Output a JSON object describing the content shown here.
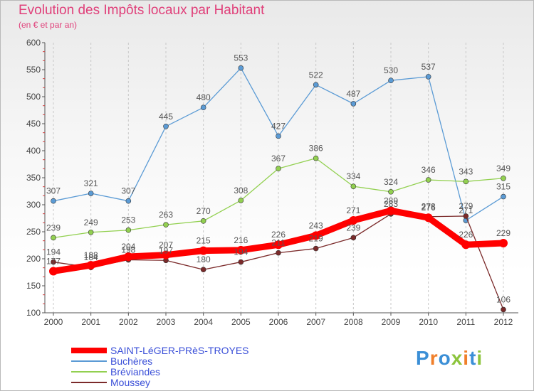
{
  "header": {
    "title": "Evolution des Impôts locaux par Habitant",
    "subtitle": "(en € et par an)"
  },
  "logo": {
    "text": "Proxiti",
    "colors": [
      "#3b8fd6",
      "#f07f2a",
      "#3b8fd6",
      "#8cc43c",
      "#f07f2a",
      "#3b8fd6",
      "#8cc43c"
    ]
  },
  "chart_data": {
    "type": "line",
    "title": "Evolution des Impôts locaux par Habitant",
    "subtitle": "(en € et par an)",
    "xlabel": "",
    "ylabel": "",
    "categories": [
      "2000",
      "2001",
      "2002",
      "2003",
      "2004",
      "2005",
      "2006",
      "2007",
      "2008",
      "2009",
      "2010",
      "2011",
      "2012"
    ],
    "ylim": [
      100,
      600
    ],
    "yticks": [
      100,
      150,
      200,
      250,
      300,
      350,
      400,
      450,
      500,
      550,
      600
    ],
    "grid": "dashed-vertical",
    "legend_position": "bottom-left",
    "series": [
      {
        "name": "SAINT-LéGER-PRèS-TROYES",
        "color": "#ff0000",
        "emphasis": true,
        "values": [
          177,
          188,
          204,
          207,
          215,
          216,
          226,
          243,
          271,
          289,
          276,
          226,
          229
        ],
        "labels": [
          "177",
          "188",
          "204",
          "207",
          "215",
          "216",
          "226",
          "243",
          "271",
          "289",
          "276",
          "226",
          "229"
        ]
      },
      {
        "name": "Buchères",
        "color": "#5b9bd5",
        "values": [
          307,
          321,
          307,
          445,
          480,
          553,
          427,
          522,
          487,
          530,
          537,
          271,
          315
        ],
        "labels": [
          "307",
          "321",
          "307",
          "445",
          "480",
          "553",
          "427",
          "522",
          "487",
          "530",
          "537",
          "271",
          "315"
        ]
      },
      {
        "name": "Bréviandes",
        "color": "#92d050",
        "values": [
          239,
          249,
          253,
          263,
          270,
          308,
          367,
          386,
          334,
          324,
          346,
          343,
          349
        ],
        "labels": [
          "239",
          "249",
          "253",
          "263",
          "270",
          "308",
          "367",
          "386",
          "334",
          "324",
          "346",
          "343",
          "349"
        ]
      },
      {
        "name": "Moussey",
        "color": "#7b2a2a",
        "values": [
          194,
          184,
          198,
          197,
          180,
          194,
          211,
          219,
          239,
          283,
          278,
          279,
          106
        ],
        "labels": [
          "194",
          "184",
          "198",
          "197",
          "180",
          "194",
          "211",
          "219",
          "239",
          "283",
          "278",
          "279",
          "106"
        ]
      }
    ]
  }
}
